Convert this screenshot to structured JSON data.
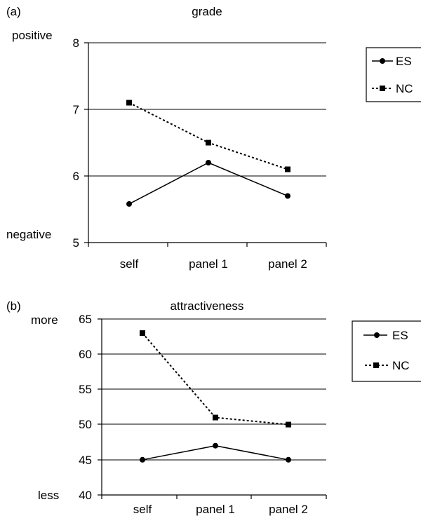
{
  "chart_data": [
    {
      "type": "line",
      "panel_label": "(a)",
      "title": "grade",
      "categories": [
        "self",
        "panel 1",
        "panel 2"
      ],
      "ylim": [
        5,
        8
      ],
      "yticks": [
        5,
        6,
        7,
        8
      ],
      "y_top_label": "positive",
      "y_bottom_label": "negative",
      "grid": true,
      "legend": "right",
      "series": [
        {
          "name": "ES",
          "values": [
            5.58,
            6.2,
            5.7
          ],
          "marker": "circle",
          "style": "solid",
          "color": "#000000"
        },
        {
          "name": "NC",
          "values": [
            7.1,
            6.5,
            6.1
          ],
          "marker": "square",
          "style": "dashed",
          "color": "#000000"
        }
      ]
    },
    {
      "type": "line",
      "panel_label": "(b)",
      "title": "attractiveness",
      "categories": [
        "self",
        "panel 1",
        "panel 2"
      ],
      "ylim": [
        40,
        65
      ],
      "yticks": [
        40,
        45,
        50,
        55,
        60,
        65
      ],
      "y_top_label": "more",
      "y_bottom_label": "less",
      "grid": true,
      "legend": "right",
      "series": [
        {
          "name": "ES",
          "values": [
            45,
            47,
            45
          ],
          "marker": "circle",
          "style": "solid",
          "color": "#000000"
        },
        {
          "name": "NC",
          "values": [
            63,
            51,
            50
          ],
          "marker": "square",
          "style": "dashed",
          "color": "#000000"
        }
      ]
    }
  ]
}
